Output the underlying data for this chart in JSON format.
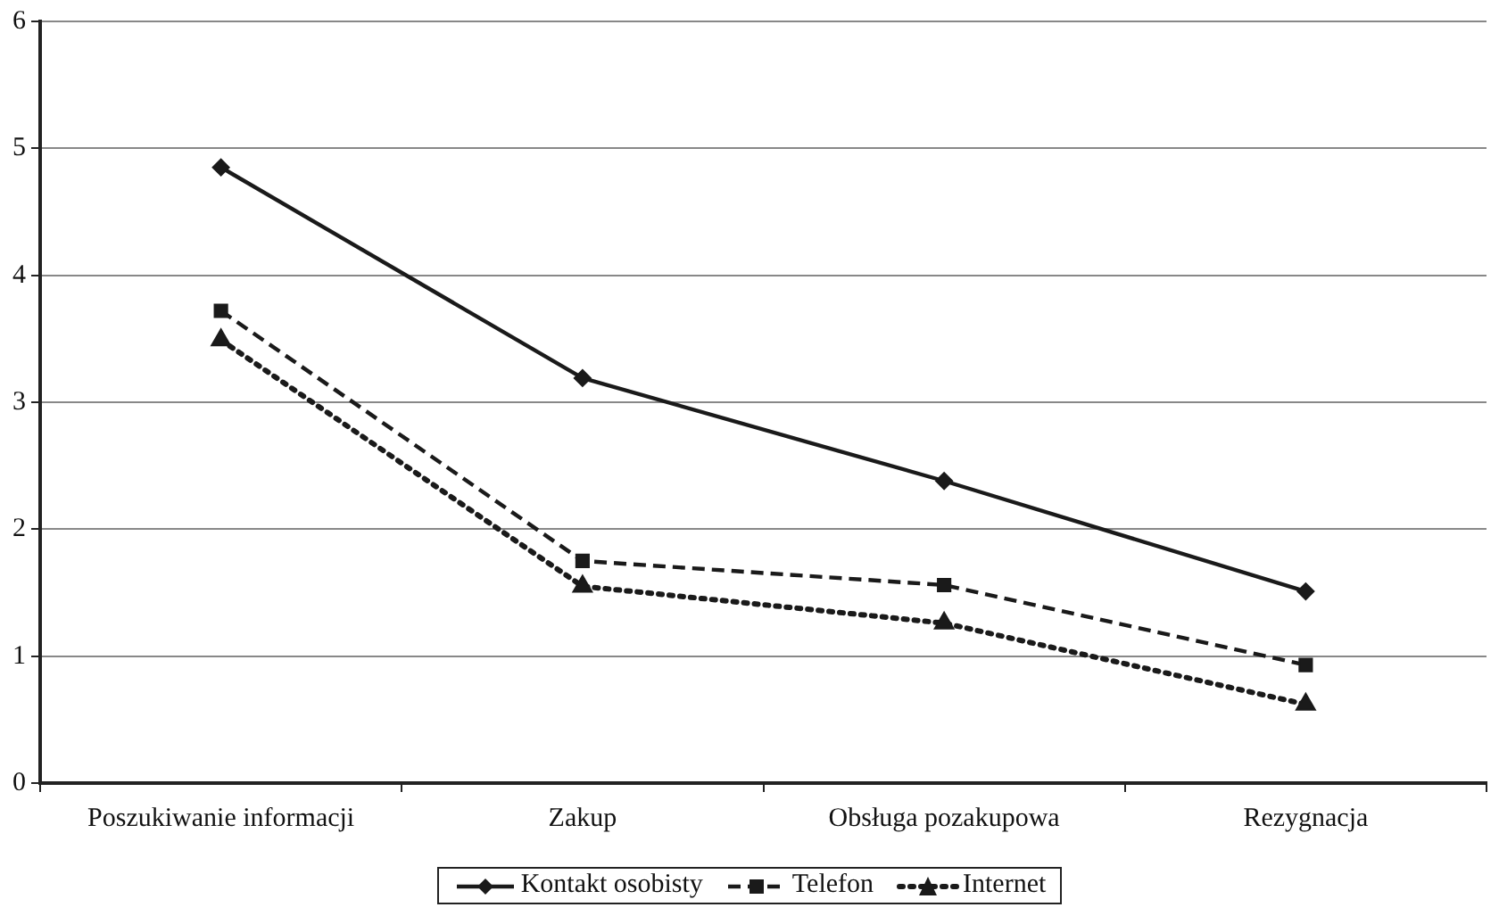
{
  "chart_data": {
    "type": "line",
    "categories": [
      "Poszukiwanie informacji",
      "Zakup",
      "Obsługa pozakupowa",
      "Rezygnacja"
    ],
    "series": [
      {
        "name": "Kontakt osobisty",
        "color": "#1a1a1a",
        "marker": "diamond",
        "line_style": "solid",
        "values": [
          4.85,
          3.19,
          2.38,
          1.51
        ]
      },
      {
        "name": "Telefon",
        "color": "#1a1a1a",
        "marker": "square",
        "line_style": "dashed",
        "values": [
          3.72,
          1.75,
          1.56,
          0.93
        ]
      },
      {
        "name": "Internet",
        "color": "#1a1a1a",
        "marker": "triangle",
        "line_style": "dotted",
        "values": [
          3.49,
          1.55,
          1.26,
          0.62
        ]
      }
    ],
    "ylim": [
      0,
      6
    ],
    "yticks": [
      0,
      1,
      2,
      3,
      4,
      5,
      6
    ],
    "grid": "y",
    "legend": "bottom"
  }
}
